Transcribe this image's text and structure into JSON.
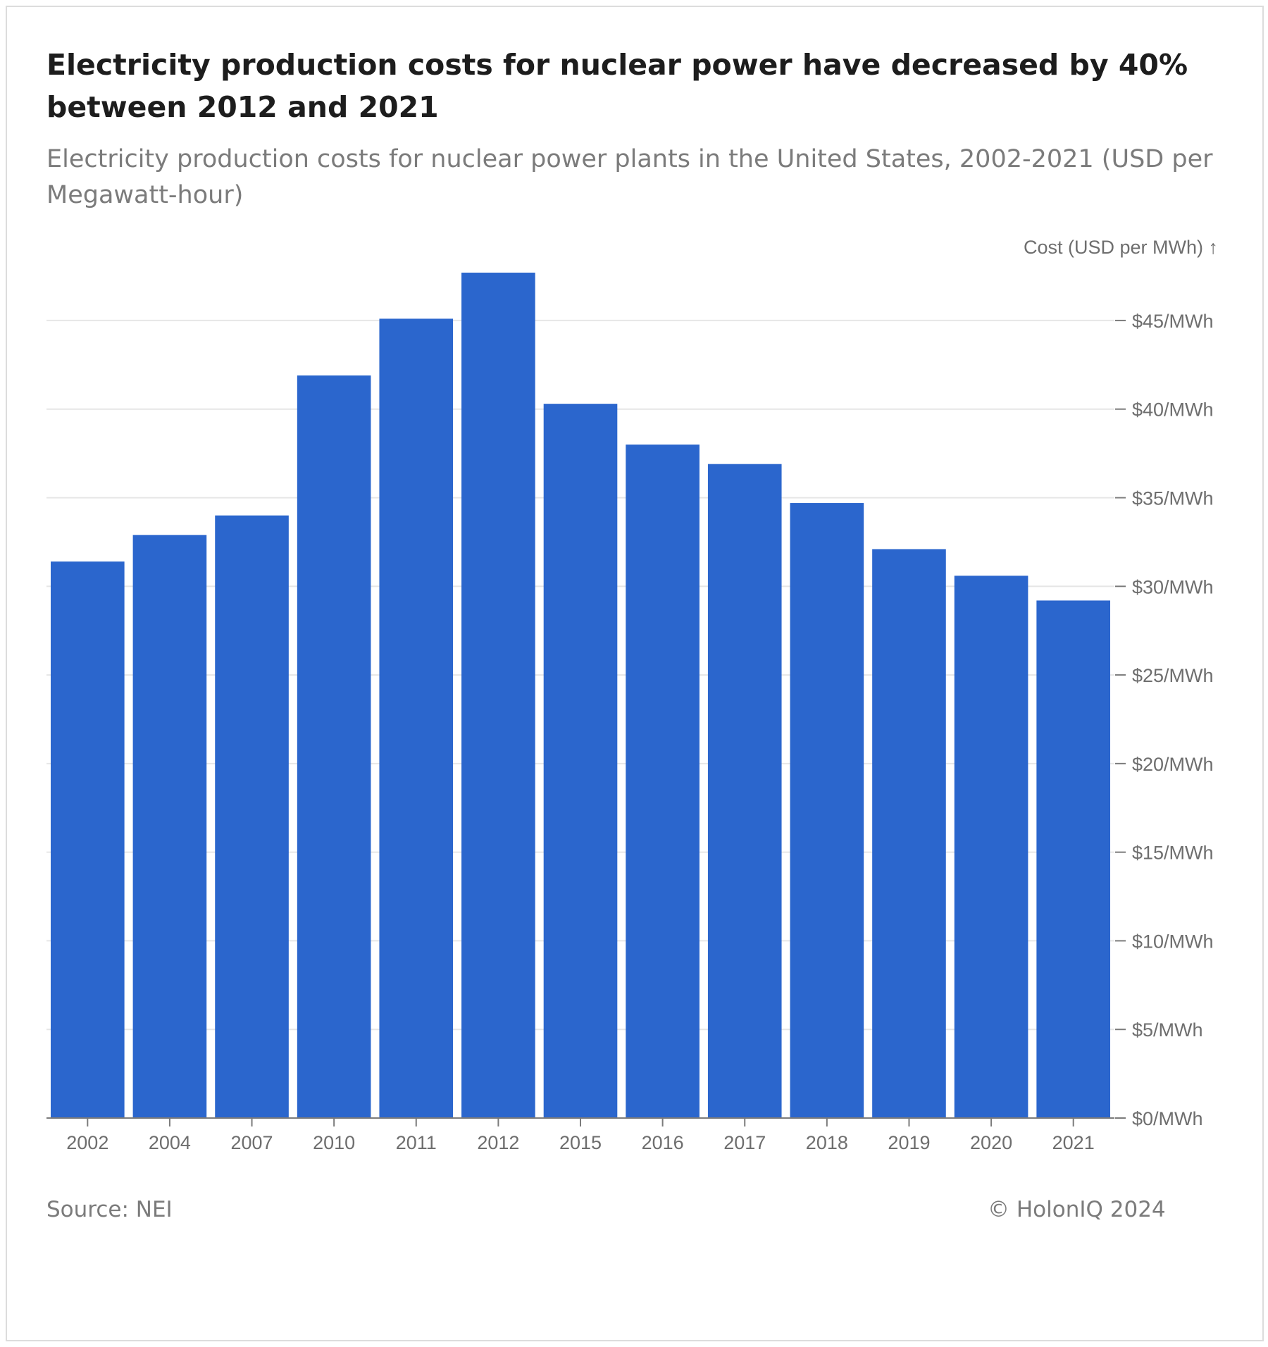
{
  "title": "Electricity production costs for nuclear power have decreased by 40% between 2012 and 2021",
  "subtitle": "Electricity production costs for nuclear power plants in the United States, 2002-2021 (USD per Megawatt-hour)",
  "source": "Source: NEI",
  "credit": "© HolonIQ 2024",
  "colors": {
    "bar": "#2b66cd",
    "grid": "#e6e6e6",
    "axis": "#7b7b7b",
    "tick_text": "#6e6e6e"
  },
  "chart_data": {
    "type": "bar",
    "categories": [
      "2002",
      "2004",
      "2007",
      "2010",
      "2011",
      "2012",
      "2015",
      "2016",
      "2017",
      "2018",
      "2019",
      "2020",
      "2021"
    ],
    "values": [
      31.4,
      32.9,
      34.0,
      41.9,
      45.1,
      47.7,
      40.3,
      38.0,
      36.9,
      34.7,
      32.1,
      30.6,
      29.2
    ],
    "ylabel": "Cost (USD per MWh) ↑",
    "y_ticks": [
      {
        "value": 0,
        "label": "$0/MWh"
      },
      {
        "value": 5,
        "label": "$5/MWh"
      },
      {
        "value": 10,
        "label": "$10/MWh"
      },
      {
        "value": 15,
        "label": "$15/MWh"
      },
      {
        "value": 20,
        "label": "$20/MWh"
      },
      {
        "value": 25,
        "label": "$25/MWh"
      },
      {
        "value": 30,
        "label": "$30/MWh"
      },
      {
        "value": 35,
        "label": "$35/MWh"
      },
      {
        "value": 40,
        "label": "$40/MWh"
      },
      {
        "value": 45,
        "label": "$45/MWh"
      }
    ],
    "ylim": [
      0,
      47.7
    ],
    "y_axis_position": "right",
    "grid": true,
    "legend": "none"
  }
}
